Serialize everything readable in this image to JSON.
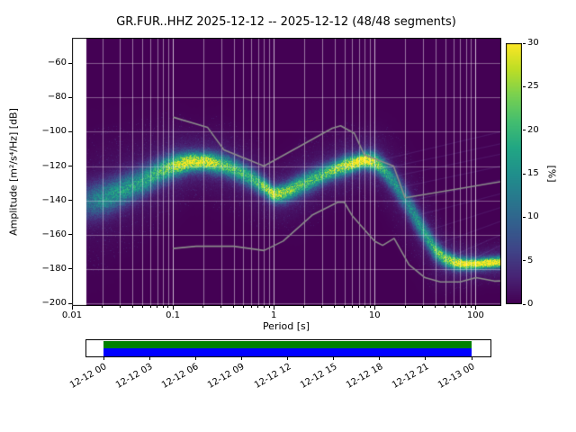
{
  "title": "GR.FUR..HHZ   2025-12-12 -- 2025-12-12  (48/48 segments)",
  "axes": {
    "xlabel": "Period [s]",
    "ylabel": "Amplitude [m²/s⁴/Hz] [dB]",
    "x_ticks": [
      "0.01",
      "0.1",
      "1",
      "10",
      "100"
    ],
    "y_ticks": [
      "−60",
      "−80",
      "−100",
      "−120",
      "−140",
      "−160",
      "−180",
      "−200"
    ]
  },
  "colorbar": {
    "label": "[%]",
    "ticks": [
      "0",
      "5",
      "10",
      "15",
      "20",
      "25",
      "30"
    ]
  },
  "timeline": {
    "labels": [
      "12-12 00",
      "12-12 03",
      "12-12 06",
      "12-12 09",
      "12-12 12",
      "12-12 15",
      "12-12 18",
      "12-12 21",
      "12-13 00"
    ],
    "colors": {
      "green": "#008000",
      "blue": "#0000ff"
    }
  },
  "chart_data": {
    "type": "heatmap",
    "title": "GR.FUR..HHZ 2025-12-12 -- 2025-12-12 (48/48 segments)",
    "xlabel": "Period [s]",
    "ylabel": "Amplitude [m^2/s^4/Hz] [dB]",
    "xscale": "log",
    "xlim": [
      0.01,
      180
    ],
    "ylim": [
      -201.5,
      -45.3
    ],
    "clim": [
      0,
      30
    ],
    "colormap": "viridis",
    "colorbar_label": "[%]",
    "xticks": [
      0.01,
      0.1,
      1,
      10,
      100
    ],
    "yticks": [
      -60,
      -80,
      -100,
      -120,
      -140,
      -160,
      -180,
      -200
    ],
    "grid": true,
    "ppsd": {
      "period_range": [
        0.014,
        180
      ],
      "periods": [
        0.014,
        0.02,
        0.03,
        0.05,
        0.07,
        0.1,
        0.15,
        0.22,
        0.3,
        0.4,
        0.6,
        0.8,
        1.0,
        1.3,
        1.8,
        2.5,
        3.5,
        5,
        6.5,
        8,
        10,
        12,
        15,
        20,
        25,
        32,
        40,
        50,
        65,
        80,
        100,
        130,
        180
      ],
      "mode_db": [
        -141,
        -139,
        -135,
        -129,
        -124,
        -120,
        -117.5,
        -117.5,
        -119,
        -121.5,
        -127,
        -132,
        -136.5,
        -135.5,
        -131.5,
        -127.5,
        -123.5,
        -120,
        -118,
        -116.5,
        -117.5,
        -121,
        -128,
        -139,
        -149,
        -160,
        -169,
        -174,
        -176.5,
        -177,
        -177,
        -176.5,
        -176
      ],
      "peak_percent": [
        9,
        13,
        14,
        15,
        17,
        22,
        28,
        26,
        20,
        18,
        17,
        20,
        26,
        22,
        19,
        18,
        20,
        24,
        28,
        30,
        24,
        18,
        14,
        12,
        13,
        15,
        18,
        22,
        27,
        29,
        30,
        30,
        30
      ],
      "spread_db": [
        7,
        6.5,
        6,
        5.5,
        5,
        4.5,
        3.5,
        3.5,
        4,
        4,
        4,
        3.5,
        3,
        3.5,
        4,
        4,
        3.5,
        3.5,
        3,
        3,
        3.5,
        4,
        4.5,
        5,
        5,
        4.5,
        4,
        3,
        2.5,
        2.2,
        2,
        2,
        2
      ]
    },
    "noise_models": {
      "color": "#8a8a8a",
      "nhnm": [
        [
          0.1,
          -91.5
        ],
        [
          0.22,
          -97.4
        ],
        [
          0.32,
          -110.5
        ],
        [
          0.8,
          -120
        ],
        [
          3.8,
          -98
        ],
        [
          4.6,
          -96.5
        ],
        [
          6.3,
          -101
        ],
        [
          7.9,
          -113.5
        ],
        [
          15.4,
          -120
        ],
        [
          20,
          -138.5
        ],
        [
          180,
          -129
        ]
      ],
      "nlnm": [
        [
          0.1,
          -168
        ],
        [
          0.17,
          -166.7
        ],
        [
          0.4,
          -166.7
        ],
        [
          0.8,
          -169.2
        ],
        [
          1.24,
          -163.7
        ],
        [
          2.4,
          -148.6
        ],
        [
          4.3,
          -141.1
        ],
        [
          5,
          -141.1
        ],
        [
          6,
          -149
        ],
        [
          10,
          -163.8
        ],
        [
          12,
          -166.2
        ],
        [
          15.6,
          -162.1
        ],
        [
          21.9,
          -177.5
        ],
        [
          31.6,
          -185
        ],
        [
          45,
          -187.5
        ],
        [
          70,
          -187.5
        ],
        [
          101,
          -185
        ],
        [
          154,
          -187
        ],
        [
          180,
          -186.9
        ]
      ]
    },
    "artifact_streaks": [
      [
        9,
        -118,
        180,
        -100
      ],
      [
        11,
        -122,
        180,
        -107
      ],
      [
        13,
        -127,
        180,
        -113
      ],
      [
        16,
        -133,
        180,
        -120
      ],
      [
        20,
        -141,
        180,
        -128
      ],
      [
        25,
        -149,
        180,
        -136
      ],
      [
        32,
        -158,
        180,
        -144
      ],
      [
        40,
        -166,
        180,
        -152
      ],
      [
        55,
        -173,
        180,
        -160
      ],
      [
        75,
        -177,
        180,
        -166
      ]
    ]
  }
}
